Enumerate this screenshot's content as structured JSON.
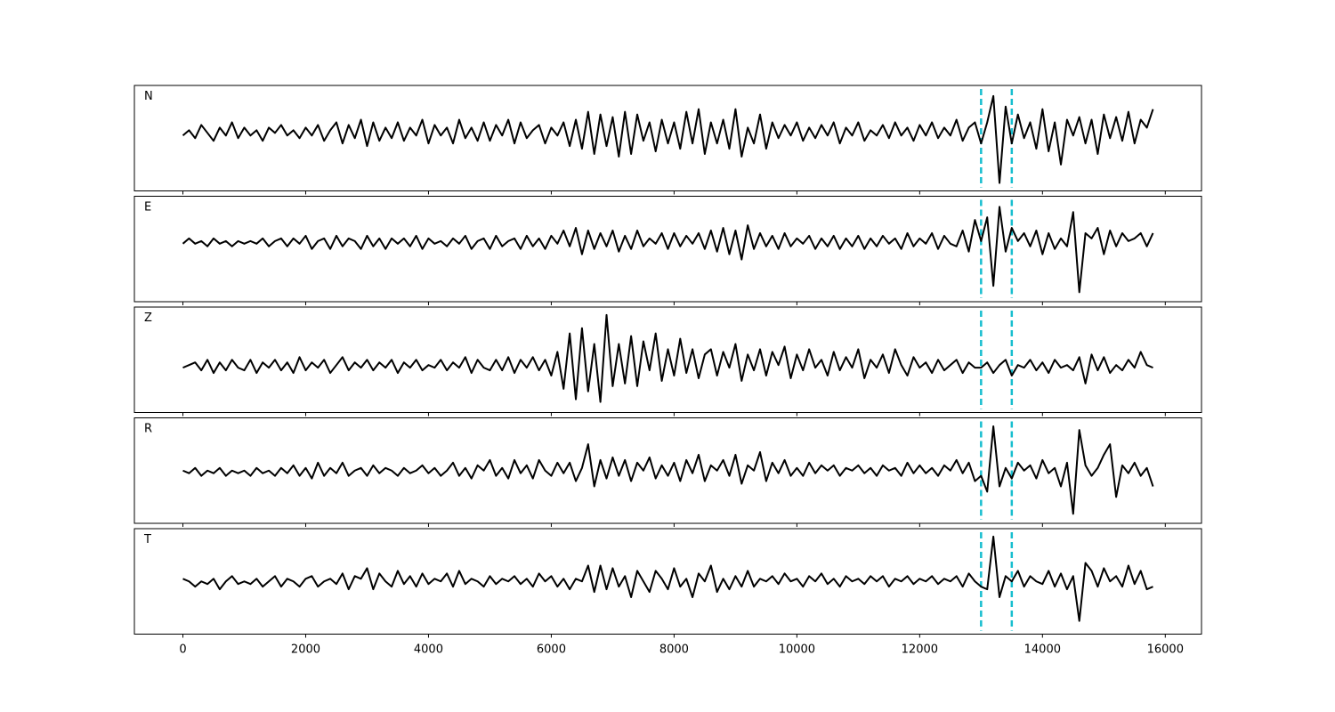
{
  "chart_data": {
    "type": "line",
    "color": "#000000",
    "xlim": [
      -790,
      16590
    ],
    "ylim": [
      -1,
      1
    ],
    "xticks": [
      0,
      2000,
      4000,
      6000,
      8000,
      10000,
      12000,
      14000,
      16000
    ],
    "vlines": {
      "values": [
        13000,
        13500
      ],
      "color": "#17becf"
    },
    "x": [
      0,
      100,
      200,
      300,
      400,
      500,
      600,
      700,
      800,
      900,
      1000,
      1100,
      1200,
      1300,
      1400,
      1500,
      1600,
      1700,
      1800,
      1900,
      2000,
      2100,
      2200,
      2300,
      2400,
      2500,
      2600,
      2700,
      2800,
      2900,
      3000,
      3100,
      3200,
      3300,
      3400,
      3500,
      3600,
      3700,
      3800,
      3900,
      4000,
      4100,
      4200,
      4300,
      4400,
      4500,
      4600,
      4700,
      4800,
      4900,
      5000,
      5100,
      5200,
      5300,
      5400,
      5500,
      5600,
      5700,
      5800,
      5900,
      6000,
      6100,
      6200,
      6300,
      6400,
      6500,
      6600,
      6700,
      6800,
      6900,
      7000,
      7100,
      7200,
      7300,
      7400,
      7500,
      7600,
      7700,
      7800,
      7900,
      8000,
      8100,
      8200,
      8300,
      8400,
      8500,
      8600,
      8700,
      8800,
      8900,
      9000,
      9100,
      9200,
      9300,
      9400,
      9500,
      9600,
      9700,
      9800,
      9900,
      10000,
      10100,
      10200,
      10300,
      10400,
      10500,
      10600,
      10700,
      10800,
      10900,
      11000,
      11100,
      11200,
      11300,
      11400,
      11500,
      11600,
      11700,
      11800,
      11900,
      12000,
      12100,
      12200,
      12300,
      12400,
      12500,
      12600,
      12700,
      12800,
      12900,
      13000,
      13100,
      13200,
      13300,
      13400,
      13500,
      13600,
      13700,
      13800,
      13900,
      14000,
      14100,
      14200,
      14300,
      14400,
      14500,
      14600,
      14700,
      14800,
      14900,
      15000,
      15100,
      15200,
      15300,
      15400,
      15500,
      15600,
      15700,
      15800
    ],
    "series": [
      {
        "name": "N",
        "values": [
          0.05,
          0.15,
          0.0,
          0.25,
          0.1,
          -0.05,
          0.2,
          0.05,
          0.3,
          0.0,
          0.2,
          0.05,
          0.15,
          -0.05,
          0.2,
          0.1,
          0.25,
          0.05,
          0.15,
          0.0,
          0.2,
          0.05,
          0.25,
          -0.05,
          0.15,
          0.3,
          -0.1,
          0.25,
          0.0,
          0.35,
          -0.15,
          0.3,
          -0.05,
          0.2,
          0.0,
          0.3,
          -0.05,
          0.2,
          0.05,
          0.35,
          -0.1,
          0.25,
          0.05,
          0.2,
          -0.1,
          0.35,
          0.0,
          0.2,
          -0.05,
          0.3,
          -0.05,
          0.25,
          0.05,
          0.35,
          -0.1,
          0.3,
          0.0,
          0.15,
          0.25,
          -0.1,
          0.2,
          0.05,
          0.3,
          -0.15,
          0.35,
          -0.2,
          0.5,
          -0.3,
          0.45,
          -0.15,
          0.4,
          -0.35,
          0.5,
          -0.3,
          0.45,
          -0.05,
          0.3,
          -0.25,
          0.35,
          -0.1,
          0.3,
          -0.2,
          0.5,
          -0.1,
          0.55,
          -0.3,
          0.3,
          -0.1,
          0.35,
          -0.2,
          0.55,
          -0.35,
          0.2,
          -0.1,
          0.45,
          -0.2,
          0.3,
          0.0,
          0.25,
          0.05,
          0.3,
          -0.05,
          0.2,
          0.0,
          0.25,
          0.05,
          0.3,
          -0.1,
          0.2,
          0.05,
          0.3,
          -0.05,
          0.15,
          0.05,
          0.25,
          0.0,
          0.3,
          0.05,
          0.2,
          -0.05,
          0.25,
          0.05,
          0.3,
          0.0,
          0.2,
          0.05,
          0.35,
          -0.05,
          0.2,
          0.3,
          -0.1,
          0.3,
          0.8,
          -0.85,
          0.6,
          -0.1,
          0.45,
          0.0,
          0.3,
          -0.2,
          0.55,
          -0.25,
          0.3,
          -0.5,
          0.35,
          0.05,
          0.4,
          -0.1,
          0.35,
          -0.3,
          0.45,
          0.0,
          0.4,
          -0.05,
          0.5,
          -0.1,
          0.35,
          0.2,
          0.55
        ]
      },
      {
        "name": "E",
        "values": [
          0.1,
          0.2,
          0.1,
          0.15,
          0.05,
          0.2,
          0.1,
          0.15,
          0.05,
          0.15,
          0.1,
          0.15,
          0.1,
          0.2,
          0.05,
          0.15,
          0.2,
          0.05,
          0.2,
          0.1,
          0.25,
          0.0,
          0.15,
          0.2,
          0.0,
          0.25,
          0.05,
          0.2,
          0.15,
          0.0,
          0.25,
          0.05,
          0.2,
          0.0,
          0.2,
          0.1,
          0.2,
          0.05,
          0.25,
          0.0,
          0.2,
          0.1,
          0.15,
          0.05,
          0.2,
          0.1,
          0.25,
          0.0,
          0.15,
          0.2,
          0.0,
          0.25,
          0.05,
          0.15,
          0.2,
          0.0,
          0.25,
          0.05,
          0.2,
          0.0,
          0.25,
          0.1,
          0.35,
          0.05,
          0.4,
          -0.1,
          0.35,
          0.0,
          0.3,
          0.05,
          0.35,
          -0.05,
          0.25,
          0.0,
          0.35,
          0.05,
          0.2,
          0.1,
          0.3,
          0.0,
          0.3,
          0.05,
          0.25,
          0.1,
          0.3,
          0.0,
          0.35,
          -0.05,
          0.4,
          -0.1,
          0.35,
          -0.2,
          0.45,
          0.0,
          0.3,
          0.05,
          0.25,
          0.0,
          0.3,
          0.05,
          0.2,
          0.1,
          0.25,
          0.0,
          0.2,
          0.05,
          0.25,
          0.0,
          0.2,
          0.05,
          0.25,
          0.0,
          0.2,
          0.05,
          0.25,
          0.1,
          0.2,
          0.0,
          0.3,
          0.05,
          0.2,
          0.1,
          0.3,
          0.0,
          0.25,
          0.1,
          0.05,
          0.35,
          -0.05,
          0.55,
          0.15,
          0.6,
          -0.7,
          0.8,
          -0.05,
          0.4,
          0.15,
          0.3,
          0.05,
          0.35,
          -0.1,
          0.3,
          0.0,
          0.2,
          0.05,
          0.7,
          -0.82,
          0.3,
          0.2,
          0.4,
          -0.1,
          0.35,
          0.05,
          0.3,
          0.15,
          0.2,
          0.3,
          0.05,
          0.3
        ]
      },
      {
        "name": "Z",
        "values": [
          -0.15,
          -0.1,
          -0.05,
          -0.2,
          0.0,
          -0.25,
          -0.05,
          -0.2,
          0.0,
          -0.15,
          -0.2,
          0.0,
          -0.25,
          -0.05,
          -0.15,
          0.0,
          -0.2,
          -0.05,
          -0.25,
          0.05,
          -0.2,
          -0.05,
          -0.15,
          0.0,
          -0.25,
          -0.1,
          0.05,
          -0.2,
          -0.05,
          -0.15,
          0.0,
          -0.2,
          -0.05,
          -0.15,
          0.0,
          -0.25,
          -0.05,
          -0.15,
          0.0,
          -0.2,
          -0.1,
          -0.15,
          0.0,
          -0.2,
          -0.05,
          -0.15,
          0.05,
          -0.25,
          0.0,
          -0.15,
          -0.2,
          0.0,
          -0.2,
          0.05,
          -0.25,
          0.0,
          -0.15,
          0.05,
          -0.2,
          0.0,
          -0.3,
          0.15,
          -0.55,
          0.5,
          -0.75,
          0.6,
          -0.6,
          0.3,
          -0.8,
          0.85,
          -0.5,
          0.3,
          -0.45,
          0.45,
          -0.5,
          0.35,
          -0.2,
          0.5,
          -0.4,
          0.2,
          -0.3,
          0.4,
          -0.25,
          0.2,
          -0.35,
          0.1,
          0.2,
          -0.3,
          0.15,
          -0.15,
          0.3,
          -0.4,
          0.1,
          -0.2,
          0.2,
          -0.3,
          0.15,
          -0.1,
          0.25,
          -0.35,
          0.1,
          -0.2,
          0.2,
          -0.15,
          0.0,
          -0.3,
          0.15,
          -0.2,
          0.05,
          -0.15,
          0.2,
          -0.35,
          0.0,
          -0.15,
          0.1,
          -0.25,
          0.2,
          -0.1,
          -0.3,
          0.05,
          -0.15,
          -0.05,
          -0.25,
          0.0,
          -0.2,
          -0.1,
          0.0,
          -0.25,
          -0.05,
          -0.15,
          -0.15,
          -0.05,
          -0.25,
          -0.1,
          0.0,
          -0.3,
          -0.1,
          -0.15,
          0.0,
          -0.2,
          -0.05,
          -0.25,
          0.0,
          -0.15,
          -0.1,
          -0.2,
          0.05,
          -0.45,
          0.1,
          -0.2,
          0.05,
          -0.25,
          -0.1,
          -0.2,
          0.0,
          -0.15,
          0.15,
          -0.1,
          -0.15
        ]
      },
      {
        "name": "R",
        "values": [
          0.0,
          -0.05,
          0.05,
          -0.1,
          0.0,
          -0.05,
          0.05,
          -0.1,
          0.0,
          -0.05,
          0.0,
          -0.1,
          0.05,
          -0.05,
          0.0,
          -0.1,
          0.05,
          -0.05,
          0.1,
          -0.1,
          0.05,
          -0.15,
          0.15,
          -0.1,
          0.05,
          -0.05,
          0.15,
          -0.1,
          0.0,
          0.05,
          -0.1,
          0.1,
          -0.05,
          0.05,
          0.0,
          -0.1,
          0.05,
          -0.05,
          0.0,
          0.1,
          -0.05,
          0.05,
          -0.1,
          0.0,
          0.15,
          -0.1,
          0.05,
          -0.15,
          0.1,
          0.0,
          0.2,
          -0.1,
          0.05,
          -0.15,
          0.2,
          -0.05,
          0.1,
          -0.15,
          0.2,
          0.0,
          -0.1,
          0.15,
          -0.05,
          0.15,
          -0.2,
          0.05,
          0.5,
          -0.3,
          0.2,
          -0.15,
          0.25,
          -0.1,
          0.2,
          -0.2,
          0.15,
          0.0,
          0.25,
          -0.15,
          0.1,
          -0.1,
          0.15,
          -0.2,
          0.2,
          -0.05,
          0.3,
          -0.2,
          0.1,
          0.0,
          0.2,
          -0.1,
          0.3,
          -0.25,
          0.1,
          0.0,
          0.35,
          -0.2,
          0.15,
          -0.05,
          0.2,
          -0.1,
          0.05,
          -0.1,
          0.15,
          -0.05,
          0.1,
          0.0,
          0.1,
          -0.1,
          0.05,
          0.0,
          0.1,
          -0.05,
          0.05,
          -0.1,
          0.1,
          0.0,
          0.05,
          -0.1,
          0.15,
          -0.05,
          0.1,
          -0.05,
          0.05,
          -0.1,
          0.1,
          0.0,
          0.2,
          -0.05,
          0.15,
          -0.2,
          -0.1,
          -0.4,
          0.84,
          -0.3,
          0.05,
          -0.15,
          0.15,
          0.0,
          0.1,
          -0.15,
          0.2,
          -0.05,
          0.05,
          -0.3,
          0.15,
          -0.82,
          0.77,
          0.1,
          -0.1,
          0.05,
          0.3,
          0.5,
          -0.5,
          0.1,
          -0.05,
          0.15,
          -0.1,
          0.05,
          -0.3
        ]
      },
      {
        "name": "T",
        "values": [
          0.05,
          0.0,
          -0.1,
          0.0,
          -0.05,
          0.05,
          -0.15,
          0.0,
          0.1,
          -0.05,
          0.0,
          -0.05,
          0.05,
          -0.1,
          0.0,
          0.1,
          -0.1,
          0.05,
          0.0,
          -0.1,
          0.05,
          0.1,
          -0.1,
          0.0,
          0.05,
          -0.05,
          0.15,
          -0.15,
          0.1,
          0.05,
          0.25,
          -0.15,
          0.15,
          0.0,
          -0.1,
          0.2,
          -0.05,
          0.1,
          -0.1,
          0.15,
          -0.05,
          0.05,
          0.0,
          0.15,
          -0.1,
          0.2,
          -0.05,
          0.05,
          0.0,
          -0.1,
          0.1,
          -0.05,
          0.05,
          0.0,
          0.1,
          -0.05,
          0.05,
          -0.1,
          0.15,
          0.0,
          0.1,
          -0.1,
          0.05,
          -0.15,
          0.05,
          0.0,
          0.3,
          -0.2,
          0.3,
          -0.15,
          0.25,
          -0.1,
          0.1,
          -0.3,
          0.2,
          0.0,
          -0.2,
          0.2,
          0.05,
          -0.15,
          0.25,
          -0.1,
          0.05,
          -0.3,
          0.15,
          0.0,
          0.3,
          -0.2,
          0.05,
          -0.15,
          0.1,
          -0.1,
          0.2,
          -0.1,
          0.05,
          0.0,
          0.1,
          -0.05,
          0.15,
          0.0,
          0.05,
          -0.1,
          0.1,
          0.0,
          0.15,
          -0.05,
          0.05,
          -0.1,
          0.1,
          0.0,
          0.05,
          -0.05,
          0.1,
          0.0,
          0.1,
          -0.1,
          0.05,
          0.0,
          0.1,
          -0.05,
          0.05,
          0.0,
          0.1,
          -0.05,
          0.05,
          0.0,
          0.1,
          -0.1,
          0.15,
          0.0,
          -0.1,
          -0.15,
          0.85,
          -0.3,
          0.1,
          0.0,
          0.2,
          -0.1,
          0.1,
          0.0,
          -0.05,
          0.2,
          -0.1,
          0.15,
          -0.15,
          0.1,
          -0.75,
          0.35,
          0.2,
          -0.1,
          0.25,
          0.0,
          0.1,
          -0.1,
          0.3,
          -0.05,
          0.2,
          -0.15,
          -0.1
        ]
      }
    ]
  }
}
